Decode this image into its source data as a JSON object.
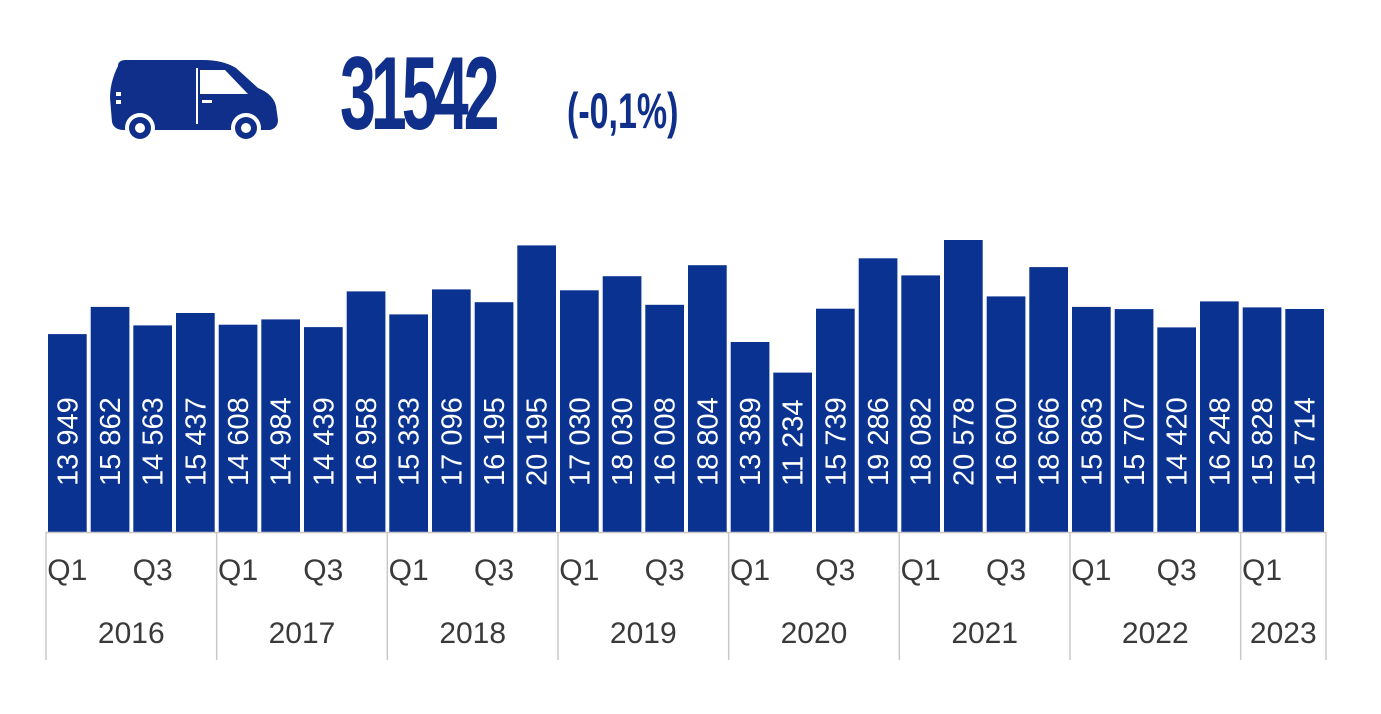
{
  "header": {
    "total": "31542",
    "change": "(-0,1%)"
  },
  "colors": {
    "bar": "#0a3391",
    "axis_line": "#c8c8c8",
    "text": "#3a3a3a",
    "value_text": "#ffffff",
    "brand": "#0f2f8a"
  },
  "icons": {
    "vehicle": "van-icon"
  },
  "chart_data": {
    "type": "bar",
    "title": "",
    "xlabel": "",
    "ylabel": "",
    "ylim": [
      0,
      22000
    ],
    "grid": false,
    "categories": [
      "Q1 2016",
      "Q2 2016",
      "Q3 2016",
      "Q4 2016",
      "Q1 2017",
      "Q2 2017",
      "Q3 2017",
      "Q4 2017",
      "Q1 2018",
      "Q2 2018",
      "Q3 2018",
      "Q4 2018",
      "Q1 2019",
      "Q2 2019",
      "Q3 2019",
      "Q4 2019",
      "Q1 2020",
      "Q2 2020",
      "Q3 2020",
      "Q4 2020",
      "Q1 2021",
      "Q2 2021",
      "Q3 2021",
      "Q4 2021",
      "Q1 2022",
      "Q2 2022",
      "Q3 2022",
      "Q4 2022",
      "Q1 2023",
      "Q2 2023"
    ],
    "values": [
      13949,
      15862,
      14563,
      15437,
      14608,
      14984,
      14439,
      16958,
      15333,
      17096,
      16195,
      20195,
      17030,
      18030,
      16008,
      18804,
      13389,
      11234,
      15739,
      19286,
      18082,
      20578,
      16600,
      18666,
      15863,
      15707,
      14420,
      16248,
      15828,
      15714
    ],
    "value_labels": [
      "13 949",
      "15 862",
      "14 563",
      "15 437",
      "14 608",
      "14 984",
      "14 439",
      "16 958",
      "15 333",
      "17 096",
      "16 195",
      "20 195",
      "17 030",
      "18 030",
      "16 008",
      "18 804",
      "13 389",
      "11 234",
      "15 739",
      "19 286",
      "18 082",
      "20 578",
      "16 600",
      "18 666",
      "15 863",
      "15 707",
      "14 420",
      "16 248",
      "15 828",
      "15 714"
    ],
    "quarter_labels": [
      "Q1",
      "",
      "Q3",
      "",
      "Q1",
      "",
      "Q3",
      "",
      "Q1",
      "",
      "Q3",
      "",
      "Q1",
      "",
      "Q3",
      "",
      "Q1",
      "",
      "Q3",
      "",
      "Q1",
      "",
      "Q3",
      "",
      "Q1",
      "",
      "Q3",
      "",
      "Q1",
      ""
    ],
    "years": [
      {
        "label": "2016",
        "quarters": 4
      },
      {
        "label": "2017",
        "quarters": 4
      },
      {
        "label": "2018",
        "quarters": 4
      },
      {
        "label": "2019",
        "quarters": 4
      },
      {
        "label": "2020",
        "quarters": 4
      },
      {
        "label": "2021",
        "quarters": 4
      },
      {
        "label": "2022",
        "quarters": 4
      },
      {
        "label": "2023",
        "quarters": 2
      }
    ]
  }
}
